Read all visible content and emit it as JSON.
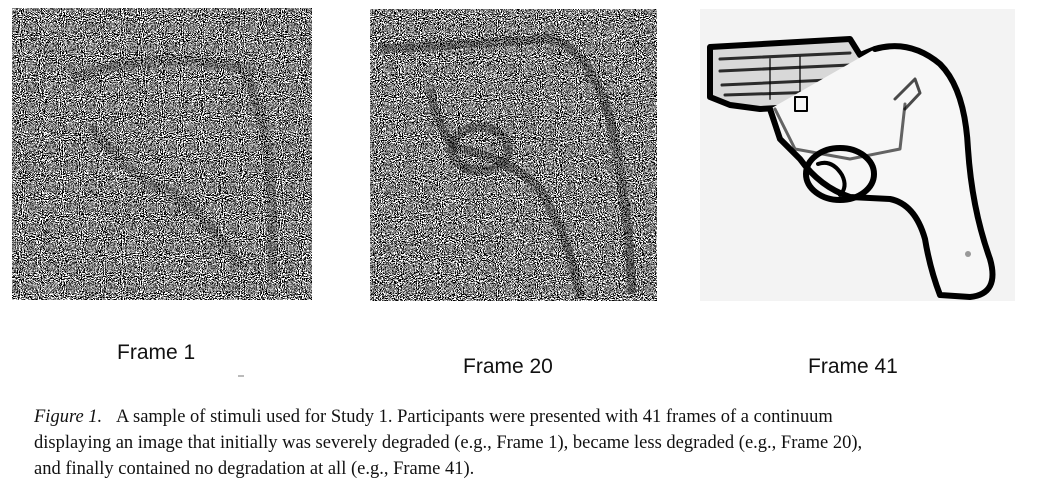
{
  "figure": {
    "panels": [
      {
        "label": "Frame 1",
        "degradation": "severe"
      },
      {
        "label": "Frame 20",
        "degradation": "less"
      },
      {
        "label": "Frame 41",
        "degradation": "none"
      }
    ],
    "caption": {
      "figure_label": "Figure 1.",
      "line1": "A sample of stimuli used for Study 1. Participants were presented with 41 frames of a continuum",
      "line2": "displaying an image that initially was severely degraded (e.g., Frame 1), became less degraded (e.g., Frame 20),",
      "line3": "and finally contained no degradation at all (e.g., Frame 41)."
    }
  },
  "colors": {
    "ink": "#111111",
    "background": "#ffffff",
    "panel_background": "#f3f3f3"
  }
}
